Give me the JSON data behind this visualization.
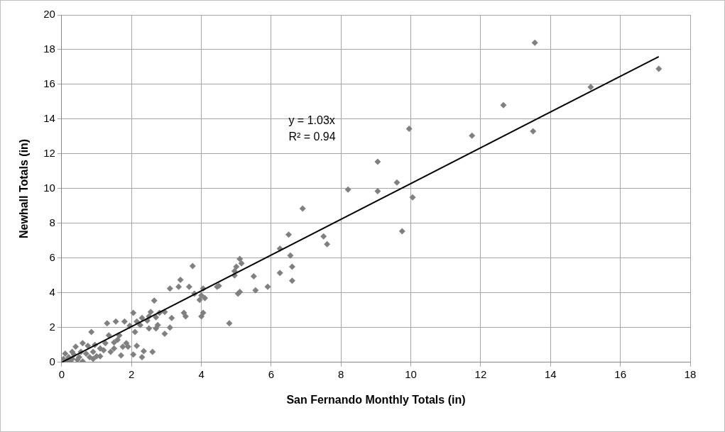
{
  "chart_data": {
    "type": "scatter",
    "xlabel": "San Fernando Monthly Totals (in)",
    "ylabel": "Newhall Totals (in)",
    "xlim": [
      0,
      18
    ],
    "xticks": [
      0,
      2,
      4,
      6,
      8,
      10,
      12,
      14,
      16,
      18
    ],
    "ylim": [
      0,
      20
    ],
    "yticks": [
      0,
      2,
      4,
      6,
      8,
      10,
      12,
      14,
      16,
      18,
      20
    ],
    "grid": true,
    "legend": false,
    "marker": "diamond",
    "annotations": [
      "y = 1.03x",
      "R² = 0.94"
    ],
    "series": [
      {
        "type": "scatter",
        "color": "#808080",
        "x": [
          17.1,
          15.15,
          13.55,
          13.5,
          12.65,
          11.75,
          10.05,
          9.95,
          9.75,
          9.6,
          9.05,
          9.05,
          8.2,
          6.9,
          7.6,
          7.5,
          6.6,
          6.6,
          6.55,
          6.5,
          6.25,
          6.25,
          5.9,
          5.55,
          5.5,
          5.15,
          5.1,
          5.1,
          5.05,
          5.0,
          4.95,
          4.95,
          4.8,
          4.5,
          4.45,
          4.1,
          4.05,
          4.05,
          4.0,
          4.0,
          3.95,
          3.8,
          3.75,
          3.65,
          3.55,
          3.5,
          3.4,
          3.35,
          3.15,
          3.1,
          3.1,
          2.95,
          2.95,
          2.8,
          2.75,
          2.7,
          2.7,
          2.65,
          2.55,
          2.5,
          2.5,
          2.45,
          2.35,
          2.3,
          2.3,
          2.25,
          2.15,
          2.15,
          2.1,
          2.05,
          2.05,
          1.95,
          1.85,
          1.8,
          1.75,
          1.7,
          1.65,
          1.6,
          1.55,
          1.5,
          1.5,
          1.4,
          1.35,
          1.3,
          1.25,
          1.2,
          1.1,
          1.0,
          0.95,
          0.9,
          0.85,
          0.8,
          0.75,
          0.7,
          0.6,
          0.55,
          0.5,
          0.45,
          0.4,
          0.35,
          0.3,
          0.25,
          0.2,
          0.15,
          0.1,
          0.05,
          0.3,
          0.6,
          0.9,
          1.1,
          1.9,
          2.6
        ],
        "values": [
          16.9,
          15.85,
          18.4,
          13.3,
          14.8,
          13.05,
          9.5,
          13.45,
          7.55,
          10.35,
          11.55,
          9.85,
          9.95,
          8.85,
          6.8,
          7.25,
          4.7,
          5.5,
          6.15,
          7.35,
          6.55,
          5.15,
          4.35,
          4.15,
          4.95,
          5.7,
          5.95,
          4.05,
          3.95,
          5.5,
          5.0,
          5.25,
          2.25,
          4.4,
          4.35,
          3.7,
          4.25,
          2.85,
          3.85,
          2.65,
          3.6,
          3.95,
          5.55,
          4.35,
          2.65,
          2.85,
          4.75,
          4.35,
          2.55,
          2.0,
          4.25,
          1.65,
          2.9,
          2.85,
          2.15,
          1.95,
          2.6,
          3.55,
          2.9,
          2.65,
          1.95,
          2.4,
          0.65,
          0.3,
          2.55,
          2.15,
          2.35,
          0.95,
          1.75,
          2.85,
          0.45,
          2.1,
          1.1,
          2.35,
          0.9,
          0.4,
          1.55,
          1.3,
          2.35,
          1.15,
          0.8,
          0.6,
          1.55,
          2.25,
          1.1,
          0.7,
          0.8,
          0.35,
          1.0,
          0.6,
          1.75,
          0.3,
          0.95,
          0.5,
          1.1,
          0.6,
          0.3,
          0.15,
          0.9,
          0.45,
          0.2,
          0.05,
          0.3,
          0.1,
          0.5,
          0.2,
          0.6,
          0.05,
          0.2,
          0.35,
          0.9,
          0.6
        ]
      },
      {
        "type": "line",
        "color": "#000000",
        "marker": "none",
        "line_style": "solid",
        "x": [
          0,
          17.1
        ],
        "values": [
          0,
          17.6
        ]
      }
    ]
  }
}
